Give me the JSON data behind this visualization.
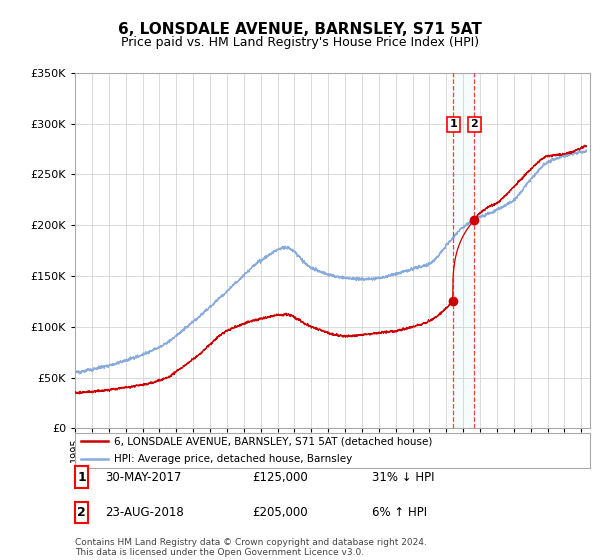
{
  "title": "6, LONSDALE AVENUE, BARNSLEY, S71 5AT",
  "subtitle": "Price paid vs. HM Land Registry's House Price Index (HPI)",
  "ylim": [
    0,
    350000
  ],
  "yticks": [
    0,
    50000,
    100000,
    150000,
    200000,
    250000,
    300000,
    350000
  ],
  "ytick_labels": [
    "£0",
    "£50K",
    "£100K",
    "£150K",
    "£200K",
    "£250K",
    "£300K",
    "£350K"
  ],
  "xlim_start": 1995.0,
  "xlim_end": 2025.5,
  "line1_color": "#cc0000",
  "line2_color": "#88aadd",
  "vline1_x": 2017.42,
  "vline2_x": 2018.65,
  "marker1_price": 125000,
  "marker2_price": 205000,
  "legend_line1": "6, LONSDALE AVENUE, BARNSLEY, S71 5AT (detached house)",
  "legend_line2": "HPI: Average price, detached house, Barnsley",
  "table_row1": [
    "1",
    "30-MAY-2017",
    "£125,000",
    "31% ↓ HPI"
  ],
  "table_row2": [
    "2",
    "23-AUG-2018",
    "£205,000",
    "6% ↑ HPI"
  ],
  "footer": "Contains HM Land Registry data © Crown copyright and database right 2024.\nThis data is licensed under the Open Government Licence v3.0.",
  "bg_color": "#ffffff",
  "grid_color": "#cccccc",
  "title_fontsize": 11,
  "subtitle_fontsize": 9,
  "tick_fontsize": 8
}
